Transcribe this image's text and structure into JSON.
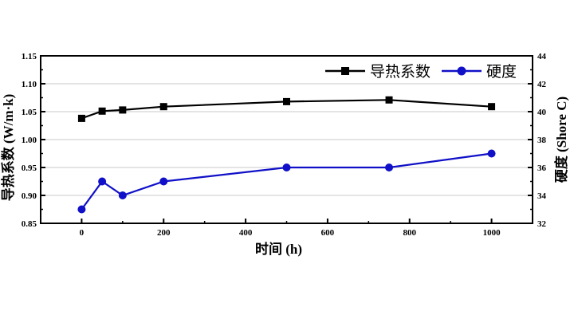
{
  "chart_data": {
    "type": "line",
    "xlabel": "时间 (h)",
    "ylabel": "导热系数 (W/m·k)",
    "y2label": "硬度 (Shore C)",
    "xlim": [
      -100,
      1100
    ],
    "ylim": [
      0.85,
      1.15
    ],
    "y2lim": [
      32,
      44
    ],
    "xticks": [
      "0",
      "200",
      "400",
      "600",
      "800",
      "1000"
    ],
    "yticks": [
      "0.85",
      "0.90",
      "0.95",
      "1.00",
      "1.05",
      "1.10",
      "1.15"
    ],
    "y2ticks": [
      "32",
      "34",
      "36",
      "38",
      "40",
      "42",
      "44"
    ],
    "grid": "horizontal at major left-axis ticks",
    "legend": "top-right",
    "x": [
      0,
      50,
      100,
      200,
      500,
      750,
      1000
    ],
    "series": [
      {
        "name": "导热系数",
        "axis": "left",
        "marker": "square",
        "color": "#000000",
        "values": [
          1.038,
          1.051,
          1.053,
          1.059,
          1.068,
          1.071,
          1.059
        ]
      },
      {
        "name": "硬度",
        "axis": "right",
        "marker": "circle",
        "color": "#1010c8",
        "values": [
          33,
          35,
          34,
          35,
          36,
          36,
          37
        ]
      }
    ]
  }
}
